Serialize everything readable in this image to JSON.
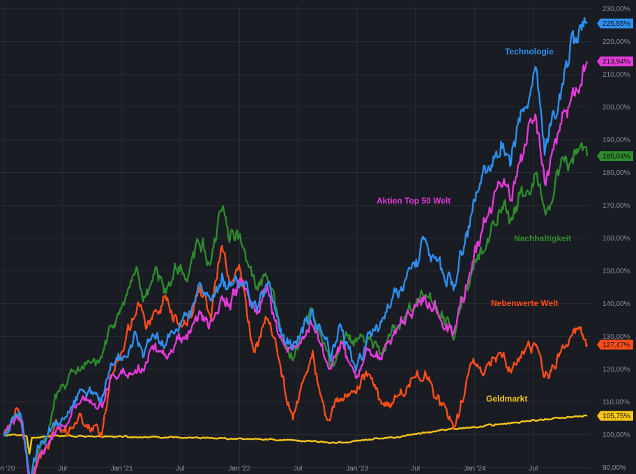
{
  "chart_data": {
    "type": "line",
    "title": "",
    "xlabel": "",
    "ylabel": "",
    "ylim": [
      88,
      231
    ],
    "xlim": [
      "2019-12-20",
      "2024-12-28"
    ],
    "grid": true,
    "legend": "inline labels at line ends",
    "y_ticks": [
      90,
      100,
      110,
      120,
      130,
      140,
      150,
      160,
      170,
      180,
      190,
      200,
      210,
      220,
      230
    ],
    "y_tick_labels": [
      "90,00%",
      "100,00%",
      "110,00%",
      "120,00%",
      "130,00%",
      "140,00%",
      "150,00%",
      "160,00%",
      "170,00%",
      "180,00%",
      "190,00%",
      "200,00%",
      "210,00%",
      "220,00%",
      "230,00%"
    ],
    "x_ticks": [
      "2020-01-01",
      "2020-07-01",
      "2021-01-01",
      "2021-07-01",
      "2022-01-01",
      "2022-07-01",
      "2023-01-01",
      "2023-07-01",
      "2024-01-01",
      "2024-07-01"
    ],
    "x_tick_labels": [
      "Jan '20",
      "Jul",
      "Jan '21",
      "Jul",
      "Jan '22",
      "Jul",
      "Jan '23",
      "Jul",
      "Jan '24",
      "Jul"
    ],
    "series": [
      {
        "name": "Geldmarkt",
        "color": "#f5c518",
        "end_label": "105,75%",
        "points": [
          [
            "2020-01-01",
            100
          ],
          [
            "2020-02-15",
            100.3
          ],
          [
            "2020-03-12",
            99.6
          ],
          [
            "2020-03-20",
            94
          ],
          [
            "2020-03-28",
            99.2
          ],
          [
            "2020-06-01",
            99.6
          ],
          [
            "2021-01-01",
            99.3
          ],
          [
            "2021-07-01",
            99.1
          ],
          [
            "2022-01-01",
            98.8
          ],
          [
            "2022-07-01",
            98.3
          ],
          [
            "2022-10-15",
            97.6
          ],
          [
            "2022-12-01",
            97.8
          ],
          [
            "2023-01-01",
            98
          ],
          [
            "2023-04-01",
            99
          ],
          [
            "2023-07-01",
            100.2
          ],
          [
            "2023-10-01",
            101.3
          ],
          [
            "2024-01-01",
            102.4
          ],
          [
            "2024-04-01",
            103.4
          ],
          [
            "2024-07-01",
            104.3
          ],
          [
            "2024-10-01",
            105.2
          ],
          [
            "2024-12-15",
            105.75
          ]
        ]
      },
      {
        "name": "Nebenwerte Welt",
        "color": "#ff4d1a",
        "end_label": "127,47%",
        "points": [
          [
            "2020-01-01",
            100
          ],
          [
            "2020-02-15",
            107
          ],
          [
            "2020-03-05",
            98
          ],
          [
            "2020-03-23",
            82
          ],
          [
            "2020-04-15",
            92
          ],
          [
            "2020-05-15",
            96
          ],
          [
            "2020-06-08",
            103
          ],
          [
            "2020-07-15",
            101
          ],
          [
            "2020-08-20",
            105
          ],
          [
            "2020-09-20",
            104
          ],
          [
            "2020-10-30",
            101
          ],
          [
            "2020-11-25",
            117
          ],
          [
            "2021-01-05",
            127
          ],
          [
            "2021-02-20",
            140
          ],
          [
            "2021-03-20",
            134
          ],
          [
            "2021-05-10",
            140
          ],
          [
            "2021-06-10",
            135
          ],
          [
            "2021-07-20",
            132
          ],
          [
            "2021-09-01",
            145
          ],
          [
            "2021-10-05",
            137
          ],
          [
            "2021-11-08",
            158
          ],
          [
            "2021-12-01",
            146
          ],
          [
            "2022-01-03",
            150
          ],
          [
            "2022-02-15",
            125
          ],
          [
            "2022-03-29",
            138
          ],
          [
            "2022-05-12",
            118
          ],
          [
            "2022-06-16",
            106
          ],
          [
            "2022-08-16",
            125
          ],
          [
            "2022-09-30",
            103
          ],
          [
            "2022-11-01",
            110
          ],
          [
            "2022-12-01",
            113
          ],
          [
            "2023-01-05",
            115
          ],
          [
            "2023-02-01",
            120
          ],
          [
            "2023-03-15",
            110
          ],
          [
            "2023-05-01",
            112
          ],
          [
            "2023-06-01",
            115
          ],
          [
            "2023-07-31",
            120
          ],
          [
            "2023-10-27",
            101
          ],
          [
            "2023-12-28",
            123
          ],
          [
            "2024-01-15",
            119
          ],
          [
            "2024-03-28",
            126
          ],
          [
            "2024-04-20",
            121
          ],
          [
            "2024-06-01",
            124
          ],
          [
            "2024-07-16",
            127
          ],
          [
            "2024-08-05",
            118
          ],
          [
            "2024-09-30",
            125
          ],
          [
            "2024-11-25",
            133
          ],
          [
            "2024-12-15",
            127.47
          ]
        ]
      },
      {
        "name": "Nachhaltigkeit",
        "color": "#2e8b2e",
        "end_label": "185,04%",
        "points": [
          [
            "2020-01-01",
            100
          ],
          [
            "2020-02-19",
            106
          ],
          [
            "2020-03-05",
            98
          ],
          [
            "2020-03-23",
            85
          ],
          [
            "2020-04-15",
            95
          ],
          [
            "2020-05-15",
            100
          ],
          [
            "2020-06-08",
            110
          ],
          [
            "2020-07-15",
            117
          ],
          [
            "2020-09-02",
            120
          ],
          [
            "2020-10-30",
            123
          ],
          [
            "2020-11-25",
            132
          ],
          [
            "2021-01-05",
            139
          ],
          [
            "2021-02-15",
            148
          ],
          [
            "2021-03-08",
            141
          ],
          [
            "2021-04-15",
            149
          ],
          [
            "2021-05-12",
            143
          ],
          [
            "2021-06-15",
            151
          ],
          [
            "2021-07-20",
            149
          ],
          [
            "2021-09-01",
            160
          ],
          [
            "2021-10-04",
            152
          ],
          [
            "2021-11-08",
            169
          ],
          [
            "2021-12-01",
            162
          ],
          [
            "2022-01-03",
            160
          ],
          [
            "2022-02-24",
            144
          ],
          [
            "2022-03-29",
            148
          ],
          [
            "2022-05-12",
            130
          ],
          [
            "2022-06-16",
            122
          ],
          [
            "2022-08-16",
            138
          ],
          [
            "2022-10-12",
            120
          ],
          [
            "2022-11-15",
            128
          ],
          [
            "2022-12-01",
            130
          ],
          [
            "2023-01-05",
            127
          ],
          [
            "2023-02-01",
            131
          ],
          [
            "2023-03-15",
            125
          ],
          [
            "2023-04-15",
            131
          ],
          [
            "2023-05-10",
            134
          ],
          [
            "2023-07-31",
            143
          ],
          [
            "2023-10-27",
            130
          ],
          [
            "2023-12-28",
            150
          ],
          [
            "2024-02-01",
            158
          ],
          [
            "2024-04-01",
            172
          ],
          [
            "2024-04-20",
            166
          ],
          [
            "2024-05-20",
            175
          ],
          [
            "2024-07-10",
            180
          ],
          [
            "2024-08-05",
            165
          ],
          [
            "2024-09-20",
            178
          ],
          [
            "2024-11-25",
            190
          ],
          [
            "2024-12-15",
            185.04
          ]
        ]
      },
      {
        "name": "Aktien Top 50 Welt",
        "color": "#e33bd9",
        "end_label": "213,94%",
        "points": [
          [
            "2020-01-01",
            100
          ],
          [
            "2020-02-19",
            106
          ],
          [
            "2020-03-05",
            99
          ],
          [
            "2020-03-23",
            83
          ],
          [
            "2020-04-15",
            93
          ],
          [
            "2020-05-15",
            97
          ],
          [
            "2020-06-08",
            102
          ],
          [
            "2020-07-15",
            104
          ],
          [
            "2020-09-02",
            110
          ],
          [
            "2020-10-30",
            108
          ],
          [
            "2020-11-25",
            117
          ],
          [
            "2021-01-05",
            119
          ],
          [
            "2021-03-08",
            121
          ],
          [
            "2021-04-15",
            127
          ],
          [
            "2021-05-12",
            124
          ],
          [
            "2021-06-15",
            128
          ],
          [
            "2021-07-20",
            129
          ],
          [
            "2021-09-02",
            136
          ],
          [
            "2021-10-04",
            132
          ],
          [
            "2021-11-08",
            142
          ],
          [
            "2021-12-01",
            139
          ],
          [
            "2022-01-03",
            146
          ],
          [
            "2022-02-24",
            138
          ],
          [
            "2022-03-29",
            145
          ],
          [
            "2022-05-12",
            128
          ],
          [
            "2022-06-16",
            124
          ],
          [
            "2022-08-16",
            135
          ],
          [
            "2022-10-12",
            120
          ],
          [
            "2022-11-15",
            129
          ],
          [
            "2022-12-28",
            118
          ],
          [
            "2023-01-15",
            120
          ],
          [
            "2023-02-01",
            127
          ],
          [
            "2023-03-15",
            125
          ],
          [
            "2023-04-15",
            131
          ],
          [
            "2023-07-31",
            142
          ],
          [
            "2023-10-27",
            132
          ],
          [
            "2023-12-28",
            155
          ],
          [
            "2024-02-01",
            163
          ],
          [
            "2024-04-01",
            178
          ],
          [
            "2024-04-20",
            172
          ],
          [
            "2024-05-20",
            182
          ],
          [
            "2024-07-10",
            198
          ],
          [
            "2024-08-05",
            175
          ],
          [
            "2024-09-20",
            193
          ],
          [
            "2024-11-25",
            207
          ],
          [
            "2024-12-15",
            213.94
          ]
        ]
      },
      {
        "name": "Technologie",
        "color": "#2d8ff0",
        "end_label": "225,55%",
        "points": [
          [
            "2020-01-01",
            100
          ],
          [
            "2020-02-19",
            106
          ],
          [
            "2020-03-05",
            99
          ],
          [
            "2020-03-23",
            86
          ],
          [
            "2020-04-15",
            96
          ],
          [
            "2020-05-15",
            101
          ],
          [
            "2020-06-08",
            103
          ],
          [
            "2020-07-15",
            106
          ],
          [
            "2020-09-02",
            116
          ],
          [
            "2020-10-30",
            112
          ],
          [
            "2020-11-25",
            120
          ],
          [
            "2021-01-05",
            123
          ],
          [
            "2021-02-15",
            131
          ],
          [
            "2021-03-08",
            125
          ],
          [
            "2021-04-15",
            133
          ],
          [
            "2021-05-12",
            129
          ],
          [
            "2021-06-15",
            135
          ],
          [
            "2021-07-20",
            137
          ],
          [
            "2021-09-02",
            143
          ],
          [
            "2021-10-04",
            138
          ],
          [
            "2021-11-08",
            147
          ],
          [
            "2021-12-01",
            144
          ],
          [
            "2022-01-03",
            148
          ],
          [
            "2022-02-24",
            138
          ],
          [
            "2022-03-29",
            147
          ],
          [
            "2022-05-12",
            130
          ],
          [
            "2022-06-16",
            126
          ],
          [
            "2022-08-16",
            138
          ],
          [
            "2022-10-12",
            124
          ],
          [
            "2022-11-15",
            132
          ],
          [
            "2022-12-28",
            120
          ],
          [
            "2023-01-15",
            124
          ],
          [
            "2023-02-01",
            130
          ],
          [
            "2023-03-15",
            132
          ],
          [
            "2023-04-15",
            140
          ],
          [
            "2023-06-15",
            152
          ],
          [
            "2023-07-31",
            158
          ],
          [
            "2023-10-27",
            145
          ],
          [
            "2023-12-28",
            170
          ],
          [
            "2024-02-01",
            178
          ],
          [
            "2024-04-01",
            190
          ],
          [
            "2024-04-20",
            183
          ],
          [
            "2024-05-20",
            195
          ],
          [
            "2024-07-10",
            211
          ],
          [
            "2024-08-05",
            186
          ],
          [
            "2024-09-20",
            204
          ],
          [
            "2024-11-25",
            228
          ],
          [
            "2024-12-15",
            225.55
          ]
        ]
      }
    ]
  }
}
